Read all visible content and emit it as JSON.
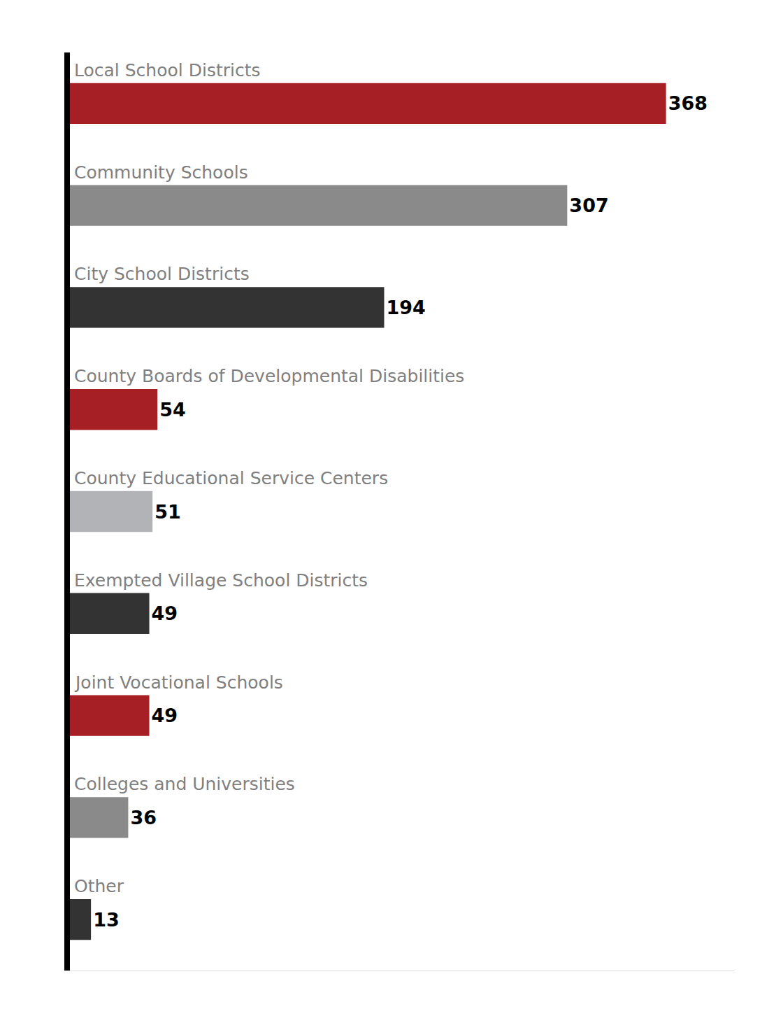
{
  "chart_data": {
    "type": "bar",
    "orientation": "horizontal",
    "categories": [
      "Local School Districts",
      "Community Schools",
      "City School Districts",
      "County Boards of Developmental Disabilities",
      "County Educational Service Centers",
      "Exempted Village School Districts",
      "Joint Vocational Schools",
      "Colleges and Universities",
      "Other"
    ],
    "values": [
      368,
      307,
      194,
      54,
      51,
      49,
      49,
      36,
      13
    ],
    "colors": [
      "#a51f24",
      "#8a8a8a",
      "#333333",
      "#a51f24",
      "#b1b3b6",
      "#333333",
      "#a51f24",
      "#8a8a8a",
      "#333333"
    ],
    "xlim": [
      0,
      410
    ],
    "data_labels": true,
    "tick_labels": false,
    "grid": false
  }
}
